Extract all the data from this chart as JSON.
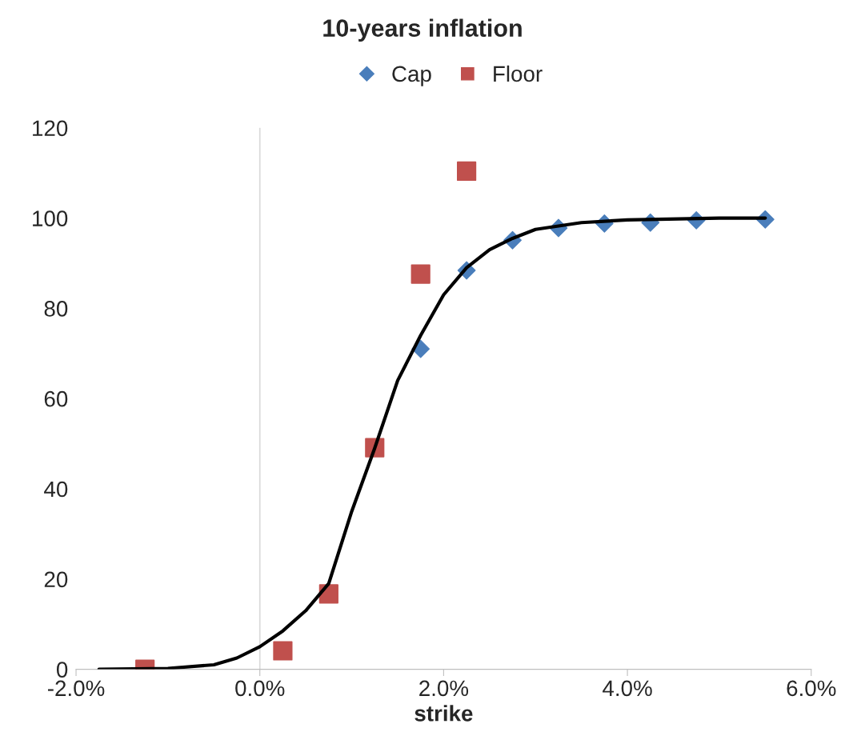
{
  "chart_data": {
    "type": "scatter",
    "title": "10-years inflation",
    "xlabel": "strike",
    "xlim": [
      -2,
      6
    ],
    "ylim": [
      0,
      120
    ],
    "xticks": [
      {
        "value": -2,
        "label": "-2.0%"
      },
      {
        "value": 0,
        "label": "0.0%"
      },
      {
        "value": 2,
        "label": "2.0%"
      },
      {
        "value": 4,
        "label": "4.0%"
      },
      {
        "value": 6,
        "label": "6.0%"
      }
    ],
    "yticks": [
      0,
      20,
      40,
      60,
      80,
      100,
      120
    ],
    "grid": false,
    "legend": "top",
    "ref_lines": [
      {
        "axis": "x",
        "value": 0,
        "color": "#d9d9d9"
      }
    ],
    "series": [
      {
        "type": "line",
        "color": "#000000",
        "marker": "none",
        "line_style": "solid",
        "x": [
          -1.75,
          -1.0,
          -0.5,
          -0.25,
          0,
          0.25,
          0.5,
          0.75,
          1.0,
          1.25,
          1.5,
          1.75,
          2.0,
          2.25,
          2.5,
          2.75,
          3.0,
          3.5,
          4.0,
          5.0,
          5.5
        ],
        "values": [
          0,
          0.2,
          1,
          2.5,
          5,
          8.5,
          13,
          19,
          35,
          49,
          64,
          74,
          83,
          89,
          93,
          95.5,
          97.5,
          99,
          99.6,
          100,
          100
        ]
      },
      {
        "name": "Cap",
        "color": "#4a7ebb",
        "marker": "diamond",
        "x": [
          1.75,
          2.25,
          2.75,
          3.25,
          3.75,
          4.25,
          4.75,
          5.5
        ],
        "values": [
          71,
          88.4,
          95.1,
          97.8,
          98.8,
          99,
          99.5,
          99.7
        ]
      },
      {
        "name": "Floor",
        "color": "#c0504d",
        "marker": "square",
        "x": [
          -1.25,
          0.25,
          0.75,
          1.25,
          1.75,
          2.25
        ],
        "values": [
          0,
          4.1,
          16.7,
          49.1,
          87.6,
          110.4
        ]
      }
    ]
  }
}
